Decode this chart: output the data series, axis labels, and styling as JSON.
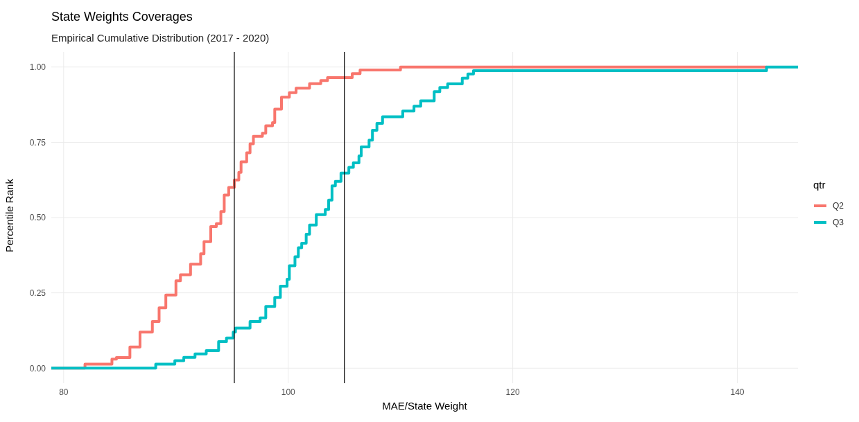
{
  "chart_data": {
    "type": "step",
    "title": "State Weights Coverages",
    "subtitle": "Empirical Cumulative Distribution (2017 - 2020)",
    "xlabel": "MAE/State Weight",
    "ylabel": "Percentile Rank",
    "legend_title": "qtr",
    "legend": "right",
    "grid": true,
    "xlim": [
      78.9,
      145.4
    ],
    "ylim": [
      -0.05,
      1.05
    ],
    "xticks": [
      80,
      100,
      120,
      140
    ],
    "yticks": [
      {
        "value": 0,
        "label": "0.00"
      },
      {
        "value": 0.25,
        "label": "0.25"
      },
      {
        "value": 0.5,
        "label": "0.50"
      },
      {
        "value": 0.75,
        "label": "0.75"
      },
      {
        "value": 1,
        "label": "1.00"
      }
    ],
    "ref_lines": [
      {
        "axis": "x",
        "value": 95.2,
        "label": null,
        "color": "#000000"
      },
      {
        "axis": "x",
        "value": 105,
        "label": null,
        "color": "#000000"
      }
    ],
    "series": [
      {
        "name": "Q2",
        "color": "#f8766d",
        "x": [
          78.9,
          81.9,
          84.3,
          84.7,
          85.9,
          86.8,
          87.9,
          88.5,
          89.1,
          90.0,
          90.4,
          91.3,
          92.2,
          92.5,
          93.1,
          93.6,
          94.0,
          94.3,
          94.7,
          95.2,
          95.6,
          95.8,
          96.3,
          96.6,
          96.9,
          97.7,
          98.0,
          98.6,
          98.8,
          99.4,
          100.1,
          100.7,
          101.9,
          102.9,
          103.5,
          105.7,
          106.4,
          110.0,
          142.6
        ],
        "values": [
          0,
          0.013,
          0.03,
          0.035,
          0.07,
          0.12,
          0.155,
          0.2,
          0.243,
          0.29,
          0.31,
          0.345,
          0.38,
          0.42,
          0.47,
          0.48,
          0.52,
          0.575,
          0.6,
          0.625,
          0.65,
          0.685,
          0.715,
          0.745,
          0.77,
          0.78,
          0.805,
          0.815,
          0.86,
          0.9,
          0.915,
          0.93,
          0.945,
          0.955,
          0.965,
          0.978,
          0.99,
          1.0,
          1.0
        ]
      },
      {
        "name": "Q3",
        "color": "#00bfc4",
        "x": [
          78.9,
          88.2,
          89.9,
          90.7,
          91.7,
          92.7,
          93.8,
          94.5,
          95.1,
          95.3,
          96.6,
          97.5,
          98.0,
          98.8,
          99.3,
          99.9,
          100.1,
          100.6,
          100.9,
          101.2,
          101.6,
          101.9,
          102.5,
          103.3,
          103.6,
          103.9,
          104.2,
          104.7,
          105.4,
          105.8,
          106.3,
          106.5,
          107.2,
          107.5,
          107.9,
          108.4,
          110.2,
          111.2,
          111.8,
          113.0,
          113.5,
          114.2,
          115.5,
          116.0,
          116.5,
          142.6,
          145.4
        ],
        "values": [
          0,
          0.013,
          0.025,
          0.036,
          0.047,
          0.058,
          0.088,
          0.1,
          0.12,
          0.133,
          0.155,
          0.167,
          0.205,
          0.235,
          0.272,
          0.295,
          0.34,
          0.37,
          0.4,
          0.415,
          0.445,
          0.475,
          0.51,
          0.527,
          0.558,
          0.605,
          0.62,
          0.648,
          0.667,
          0.682,
          0.705,
          0.735,
          0.757,
          0.79,
          0.813,
          0.835,
          0.854,
          0.87,
          0.888,
          0.918,
          0.932,
          0.944,
          0.963,
          0.977,
          0.988,
          1.0,
          1.0
        ]
      }
    ]
  }
}
